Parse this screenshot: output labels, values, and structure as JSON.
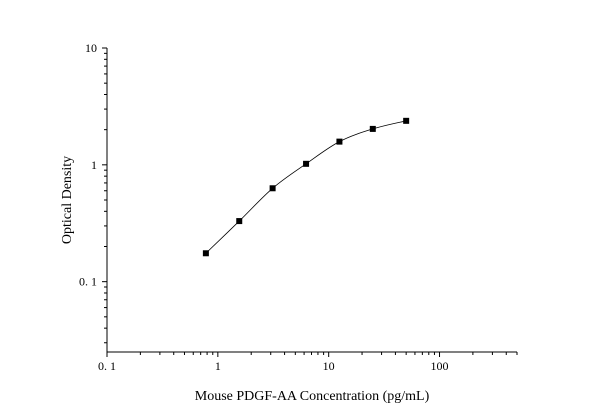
{
  "chart_data": {
    "type": "scatter",
    "xlabel": "Mouse PDGF-AA Concentration (pg/mL)",
    "ylabel": "Optical Density",
    "x_scale": "log",
    "y_scale": "log",
    "xlim": [
      0.1,
      500
    ],
    "ylim": [
      0.025,
      10
    ],
    "grid": false,
    "x_ticks": [
      {
        "value": 0.1,
        "label": "0. 1"
      },
      {
        "value": 1,
        "label": "1"
      },
      {
        "value": 10,
        "label": "10"
      },
      {
        "value": 100,
        "label": "100"
      }
    ],
    "y_ticks": [
      {
        "value": 0.1,
        "label": "0. 1"
      },
      {
        "value": 1,
        "label": "1"
      },
      {
        "value": 10,
        "label": "10"
      }
    ],
    "series": [
      {
        "x": [
          0.78,
          1.56,
          3.12,
          6.25,
          12.5,
          25,
          50
        ],
        "y": [
          0.175,
          0.33,
          0.63,
          1.02,
          1.58,
          2.03,
          2.38
        ],
        "marker": "square",
        "fit_curve": true
      }
    ]
  }
}
